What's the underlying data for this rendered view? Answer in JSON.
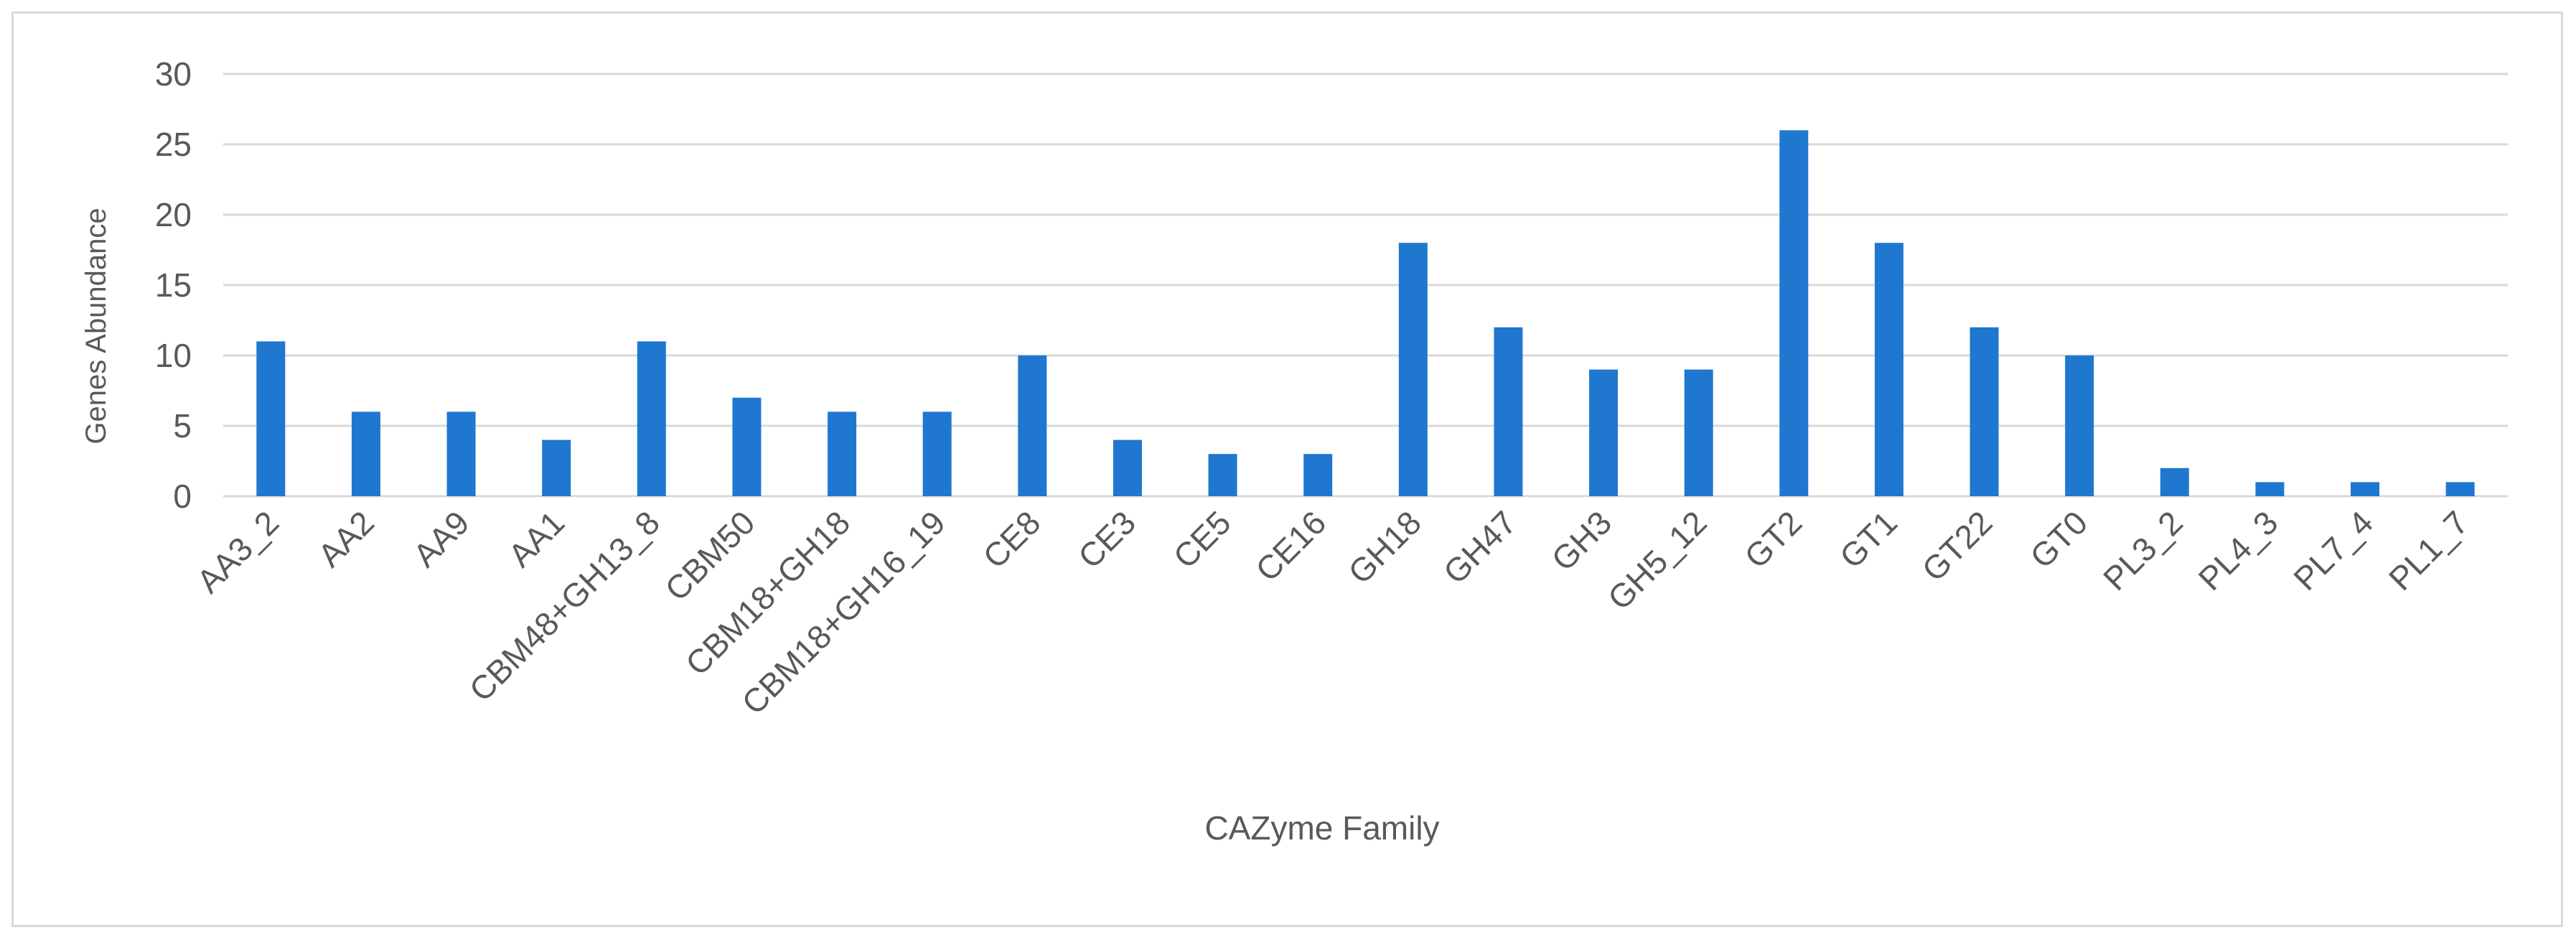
{
  "chart_data": {
    "type": "bar",
    "title": "",
    "xlabel": "CAZyme Family",
    "ylabel": "Genes Abundance",
    "ylim": [
      0,
      30
    ],
    "yticks": [
      0,
      5,
      10,
      15,
      20,
      25,
      30
    ],
    "grid": true,
    "legend": "none",
    "color": "#1f77d0",
    "categories": [
      "AA3_2",
      "AA2",
      "AA9",
      "AA1",
      "CBM48+GH13_8",
      "CBM50",
      "CBM18+GH18",
      "CBM18+GH16_19",
      "CE8",
      "CE3",
      "CE5",
      "CE16",
      "GH18",
      "GH47",
      "GH3",
      "GH5_12",
      "GT2",
      "GT1",
      "GT22",
      "GT0",
      "PL3_2",
      "PL4_3",
      "PL7_4",
      "PL1_7"
    ],
    "values": [
      11,
      6,
      6,
      4,
      11,
      7,
      6,
      6,
      10,
      4,
      3,
      3,
      18,
      12,
      9,
      9,
      26,
      18,
      12,
      10,
      2,
      1,
      1,
      1
    ]
  }
}
